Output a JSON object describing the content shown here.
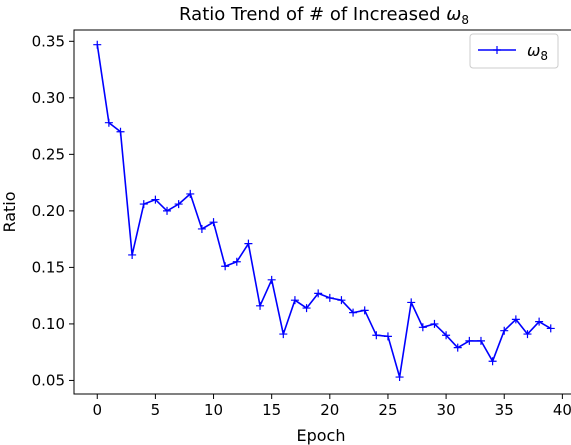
{
  "chart_data": {
    "type": "line",
    "title_prefix": "Ratio Trend of # of Increased ",
    "title_symbol": "ω",
    "title_sub": "8",
    "xlabel": "Epoch",
    "ylabel": "Ratio",
    "xlim": [
      -2,
      41
    ],
    "ylim": [
      0.038,
      0.36
    ],
    "xticks": [
      0,
      5,
      10,
      15,
      20,
      25,
      30,
      35,
      40
    ],
    "yticks": [
      0.05,
      0.1,
      0.15,
      0.2,
      0.25,
      0.3,
      0.35
    ],
    "ytick_labels": [
      "0.05",
      "0.10",
      "0.15",
      "0.20",
      "0.25",
      "0.30",
      "0.35"
    ],
    "grid": false,
    "legend_position": "top-right",
    "series": [
      {
        "name_symbol": "ω",
        "name_sub": "8",
        "color": "#0000ff",
        "marker": "plus",
        "x": [
          0,
          1,
          2,
          3,
          4,
          5,
          6,
          7,
          8,
          9,
          10,
          11,
          12,
          13,
          14,
          15,
          16,
          17,
          18,
          19,
          20,
          21,
          22,
          23,
          24,
          25,
          26,
          27,
          28,
          29,
          30,
          31,
          32,
          33,
          34,
          35,
          36,
          37,
          38,
          39
        ],
        "y": [
          0.347,
          0.278,
          0.27,
          0.161,
          0.206,
          0.21,
          0.2,
          0.206,
          0.215,
          0.184,
          0.19,
          0.151,
          0.155,
          0.171,
          0.116,
          0.139,
          0.091,
          0.121,
          0.114,
          0.127,
          0.123,
          0.121,
          0.11,
          0.112,
          0.09,
          0.089,
          0.053,
          0.119,
          0.097,
          0.1,
          0.09,
          0.079,
          0.085,
          0.085,
          0.067,
          0.094,
          0.104,
          0.091,
          0.102,
          0.096
        ]
      }
    ]
  }
}
